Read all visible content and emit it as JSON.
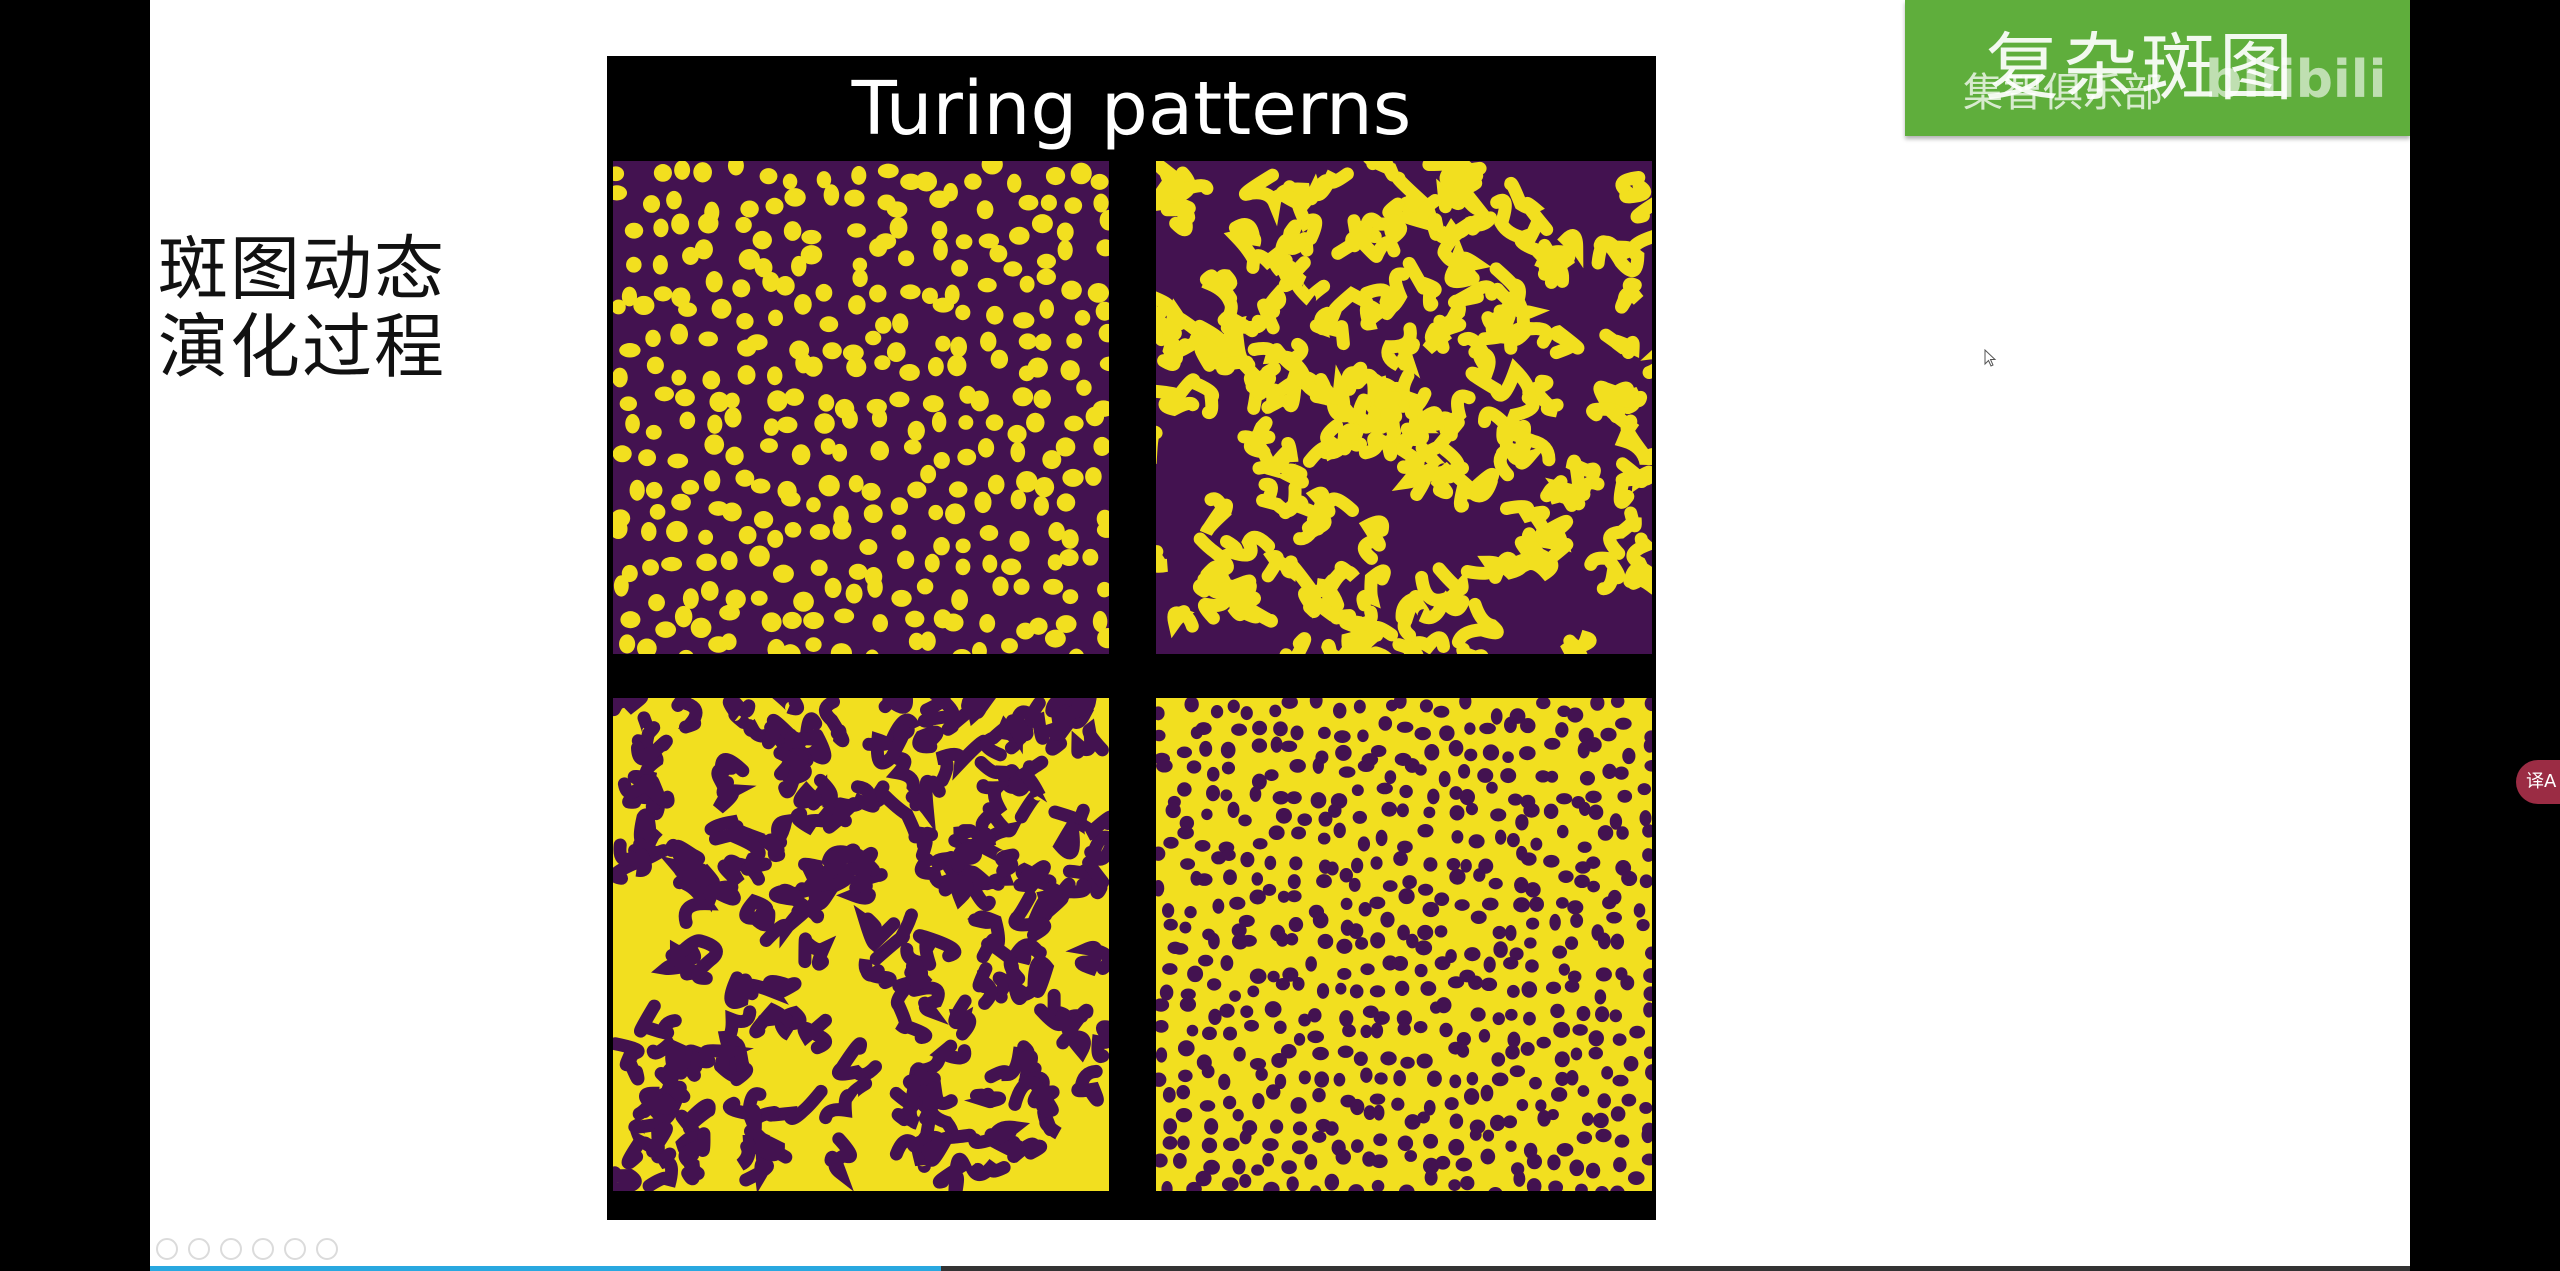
{
  "slide": {
    "title_lines": [
      "斑图动态",
      "演化过程"
    ]
  },
  "figure": {
    "title": "Turing patterns",
    "panels": [
      {
        "name": "spots-yellow-on-purple",
        "pattern": "spots"
      },
      {
        "name": "stripes-yellow-on-purple",
        "pattern": "stripes"
      },
      {
        "name": "stripes-purple-on-yellow",
        "pattern": "stripes-inverse"
      },
      {
        "name": "spots-purple-on-yellow",
        "pattern": "spots-inverse"
      }
    ],
    "colors": {
      "purple": "#431250",
      "yellow": "#f2df1f",
      "border": "#000000"
    }
  },
  "badge": {
    "title": "复杂斑图",
    "subtitle": "集智俱乐部",
    "logo": "bilibili",
    "color": "#5fae3c"
  },
  "player": {
    "progress_fraction": 0.35,
    "progress_color": "#29a8e0"
  },
  "translate_button": {
    "label": "译A"
  }
}
